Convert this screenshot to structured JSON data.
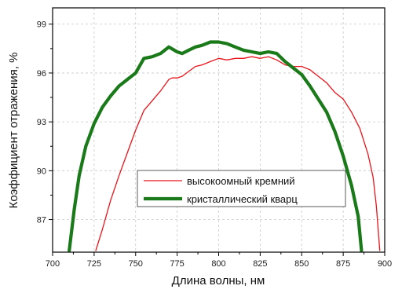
{
  "chart_data": {
    "type": "line",
    "title": "",
    "xlabel": "Длина волны, нм",
    "ylabel": "Коэффициент отражения, %",
    "xlim": [
      700,
      900
    ],
    "ylim": [
      85.0,
      100.0
    ],
    "xticks": [
      700,
      725,
      750,
      775,
      800,
      825,
      850,
      875,
      900
    ],
    "yticks": [
      87,
      90,
      93,
      96,
      99
    ],
    "grid": true,
    "legend_position": "center-right",
    "series": [
      {
        "name": "высокоомный кремний",
        "color": "#e8141b",
        "width": "thin",
        "x": [
          726,
          730,
          735,
          740,
          745,
          750,
          755,
          760,
          765,
          770,
          772,
          775,
          778,
          782,
          786,
          790,
          795,
          800,
          805,
          810,
          815,
          820,
          825,
          830,
          835,
          840,
          845,
          850,
          855,
          860,
          865,
          870,
          875,
          880,
          885,
          890,
          893,
          895,
          897
        ],
        "y": [
          85.1,
          86.4,
          88.2,
          89.7,
          91.1,
          92.5,
          93.7,
          94.3,
          94.9,
          95.6,
          95.7,
          95.7,
          95.8,
          96.1,
          96.4,
          96.5,
          96.7,
          96.9,
          96.8,
          96.9,
          96.9,
          97.0,
          96.9,
          97.0,
          96.8,
          96.5,
          96.4,
          96.4,
          96.2,
          95.8,
          95.4,
          94.8,
          94.4,
          93.6,
          92.6,
          91.0,
          89.6,
          87.8,
          85.1
        ]
      },
      {
        "name": "кристаллический кварц",
        "color": "#1a7a1a",
        "width": "thick",
        "x": [
          710,
          713,
          716,
          720,
          725,
          730,
          735,
          740,
          745,
          750,
          755,
          760,
          765,
          770,
          775,
          778,
          782,
          786,
          790,
          795,
          800,
          805,
          810,
          815,
          820,
          825,
          830,
          835,
          840,
          845,
          850,
          855,
          860,
          865,
          870,
          875,
          880,
          884,
          886
        ],
        "y": [
          85.1,
          87.6,
          89.7,
          91.5,
          92.9,
          93.9,
          94.6,
          95.2,
          95.6,
          96.0,
          96.9,
          97.0,
          97.2,
          97.6,
          97.3,
          97.2,
          97.4,
          97.6,
          97.7,
          97.9,
          97.9,
          97.8,
          97.6,
          97.4,
          97.3,
          97.2,
          97.3,
          97.2,
          96.7,
          96.3,
          95.9,
          95.2,
          94.4,
          93.6,
          92.4,
          90.9,
          89.1,
          87.2,
          85.1
        ]
      }
    ]
  }
}
